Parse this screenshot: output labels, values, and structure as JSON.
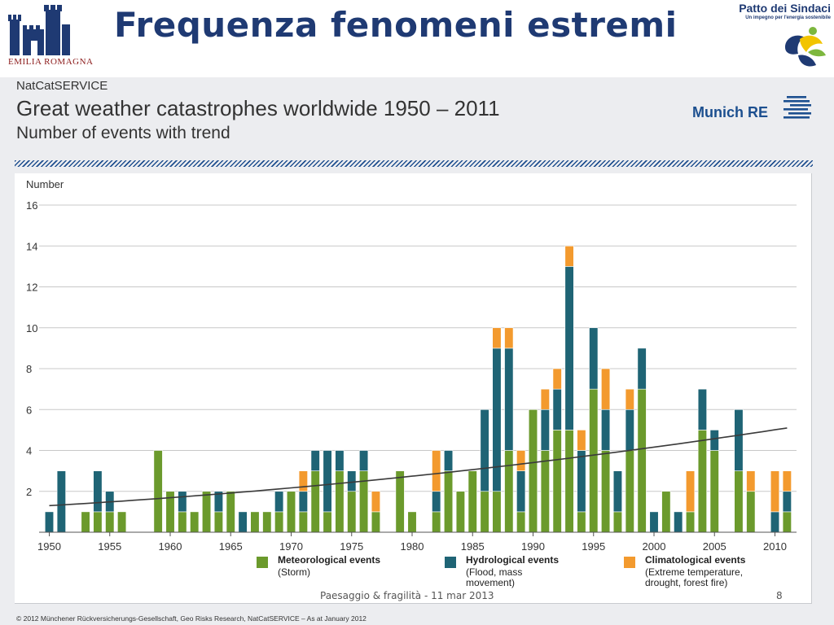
{
  "slide": {
    "title": "Frequenza fenomeni estremi",
    "region_logo_text": "EMILIA ROMAGNA",
    "partner_title": "Patto dei Sindaci",
    "partner_subtitle": "Un impegno per l'energia sostenibile",
    "footer_note": "Paesaggio & fragilità - 11 mar 2013",
    "page_number": "8"
  },
  "brand": {
    "source_label": "NatCatSERVICE",
    "company": "Munich RE",
    "copyright": "© 2012 Münchener Rückversicherungs-Gesellschaft, Geo Risks Research, NatCatSERVICE – As at January 2012"
  },
  "colors": {
    "meteorological": "#6b9a2c",
    "hydrological": "#1f6475",
    "climatological": "#f39a2e",
    "trend": "#3a3a3a",
    "title": "#1f3a73"
  },
  "chart_data": {
    "type": "bar",
    "stacked": true,
    "title": "Great weather catastrophes worldwide 1950 – 2011",
    "subtitle": "Number of events with trend",
    "ylabel": "Number",
    "ylim": [
      0,
      16
    ],
    "yticks": [
      2,
      4,
      6,
      8,
      10,
      12,
      14,
      16
    ],
    "xticks": [
      1950,
      1955,
      1960,
      1965,
      1970,
      1975,
      1980,
      1985,
      1990,
      1995,
      2000,
      2005,
      2010
    ],
    "grid": true,
    "legend_position": "bottom",
    "x": [
      1950,
      1951,
      1952,
      1953,
      1954,
      1955,
      1956,
      1957,
      1958,
      1959,
      1960,
      1961,
      1962,
      1963,
      1964,
      1965,
      1966,
      1967,
      1968,
      1969,
      1970,
      1971,
      1972,
      1973,
      1974,
      1975,
      1976,
      1977,
      1978,
      1979,
      1980,
      1981,
      1982,
      1983,
      1984,
      1985,
      1986,
      1987,
      1988,
      1989,
      1990,
      1991,
      1992,
      1993,
      1994,
      1995,
      1996,
      1997,
      1998,
      1999,
      2000,
      2001,
      2002,
      2003,
      2004,
      2005,
      2006,
      2007,
      2008,
      2009,
      2010,
      2011
    ],
    "series": [
      {
        "name": "Meteorological events",
        "description": "(Storm)",
        "color": "#6b9a2c",
        "values": [
          0,
          0,
          0,
          1,
          1,
          1,
          1,
          0,
          0,
          4,
          2,
          1,
          1,
          2,
          1,
          2,
          0,
          1,
          1,
          1,
          2,
          1,
          3,
          1,
          3,
          2,
          3,
          1,
          0,
          3,
          1,
          0,
          1,
          3,
          2,
          3,
          2,
          2,
          4,
          1,
          6,
          4,
          5,
          5,
          1,
          7,
          4,
          1,
          4,
          7,
          0,
          2,
          0,
          1,
          5,
          4,
          0,
          3,
          2,
          0,
          0,
          1
        ]
      },
      {
        "name": "Hydrological events",
        "description": "(Flood, mass movement)",
        "color": "#1f6475",
        "values": [
          1,
          3,
          0,
          0,
          2,
          1,
          0,
          0,
          0,
          0,
          0,
          1,
          0,
          0,
          1,
          0,
          1,
          0,
          0,
          1,
          0,
          1,
          1,
          3,
          1,
          1,
          1,
          0,
          0,
          0,
          0,
          0,
          1,
          1,
          0,
          0,
          4,
          7,
          5,
          2,
          0,
          2,
          2,
          8,
          3,
          3,
          2,
          2,
          2,
          2,
          1,
          0,
          1,
          0,
          2,
          1,
          0,
          3,
          0,
          0,
          1,
          1
        ]
      },
      {
        "name": "Climatological events",
        "description": "(Extreme temperature, drought, forest fire)",
        "color": "#f39a2e",
        "values": [
          0,
          0,
          0,
          0,
          0,
          0,
          0,
          0,
          0,
          0,
          0,
          0,
          0,
          0,
          0,
          0,
          0,
          0,
          0,
          0,
          0,
          1,
          0,
          0,
          0,
          0,
          0,
          1,
          0,
          0,
          0,
          0,
          2,
          0,
          0,
          0,
          0,
          1,
          1,
          1,
          0,
          1,
          1,
          1,
          1,
          0,
          2,
          0,
          1,
          0,
          0,
          0,
          0,
          2,
          0,
          0,
          0,
          0,
          1,
          0,
          2,
          1
        ]
      }
    ],
    "trend": {
      "name": "trend",
      "start": 1.3,
      "end": 5.1
    }
  }
}
